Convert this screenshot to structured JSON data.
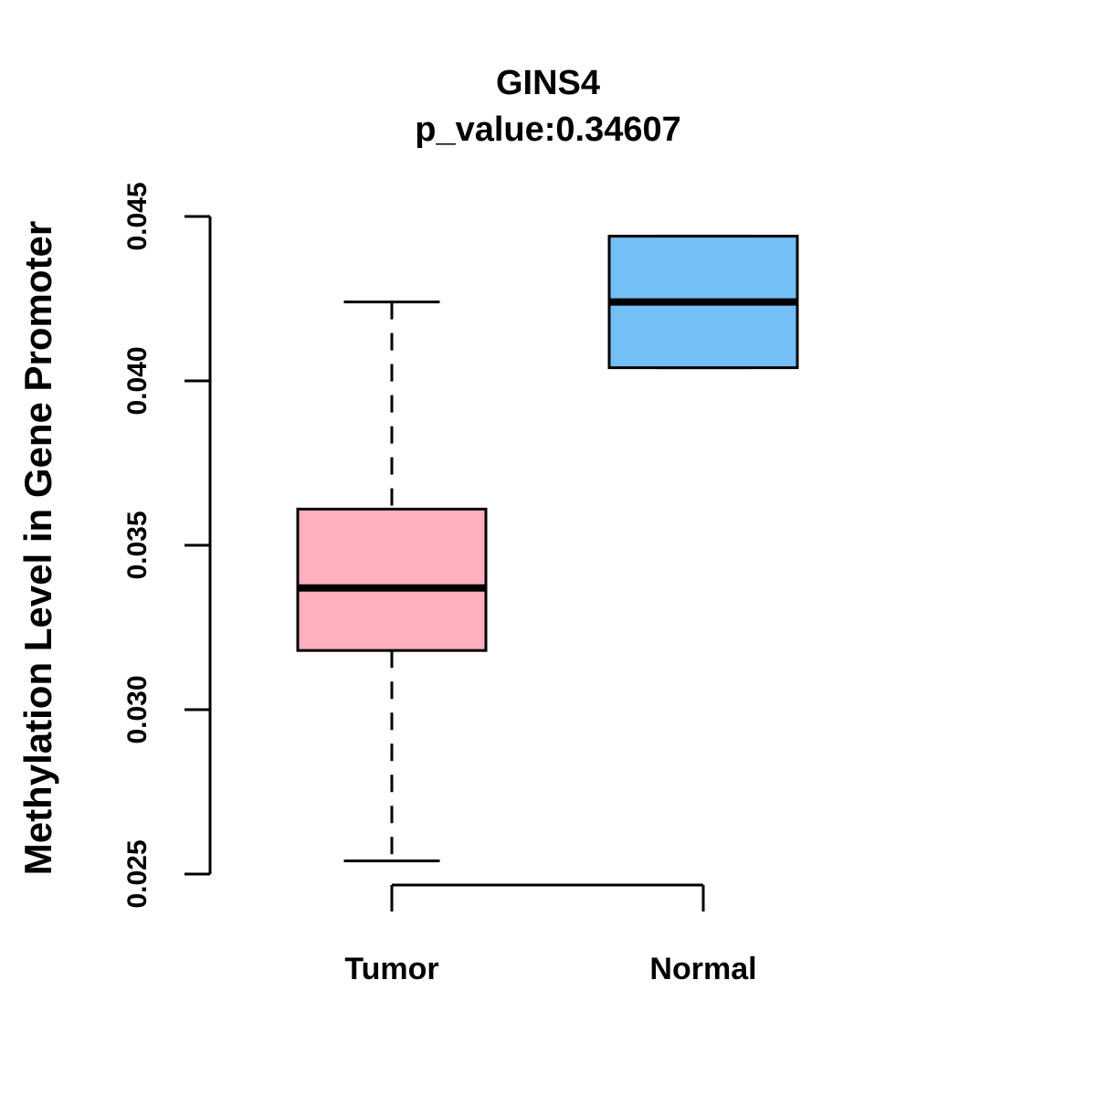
{
  "chart_data": {
    "type": "boxplot",
    "title": "GINS4",
    "subtitle": "p_value:0.34607",
    "gene": "GINS4",
    "p_value": 0.34607,
    "ylabel": "Methylation Level in Gene Promoter",
    "xlabel": "",
    "categories": [
      "Tumor",
      "Normal"
    ],
    "ylim": [
      0.025,
      0.045
    ],
    "yticks": [
      0.025,
      0.03,
      0.035,
      0.04,
      0.045
    ],
    "ytick_labels": [
      "0.025",
      "0.030",
      "0.035",
      "0.040",
      "0.045"
    ],
    "grid": false,
    "legend": "none",
    "series": [
      {
        "name": "Tumor",
        "whisker_low": 0.0254,
        "q1": 0.0318,
        "median": 0.0337,
        "q3": 0.0361,
        "whisker_high": 0.0424,
        "fill": "#FFAFBE"
      },
      {
        "name": "Normal",
        "whisker_low": 0.0404,
        "q1": 0.0404,
        "median": 0.0424,
        "q3": 0.0444,
        "whisker_high": 0.0444,
        "fill": "#74BFF5"
      }
    ],
    "stroke_color": "#000000",
    "background_color": "#FFFFFF"
  }
}
